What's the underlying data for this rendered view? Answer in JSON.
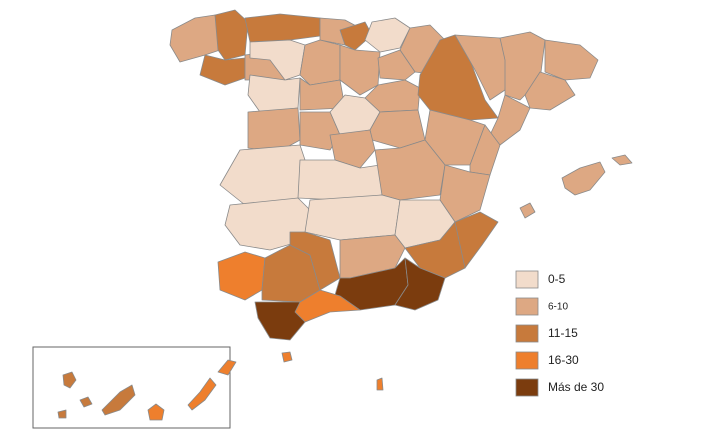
{
  "legend": {
    "items": [
      {
        "label": "0-5",
        "color": "#f2dccb"
      },
      {
        "label": "6-10",
        "color": "#dda883"
      },
      {
        "label": "11-15",
        "color": "#c77a3c"
      },
      {
        "label": "16-30",
        "color": "#ee7f2d"
      },
      {
        "label": "Más de 30",
        "color": "#7b3c0e"
      }
    ]
  }
}
